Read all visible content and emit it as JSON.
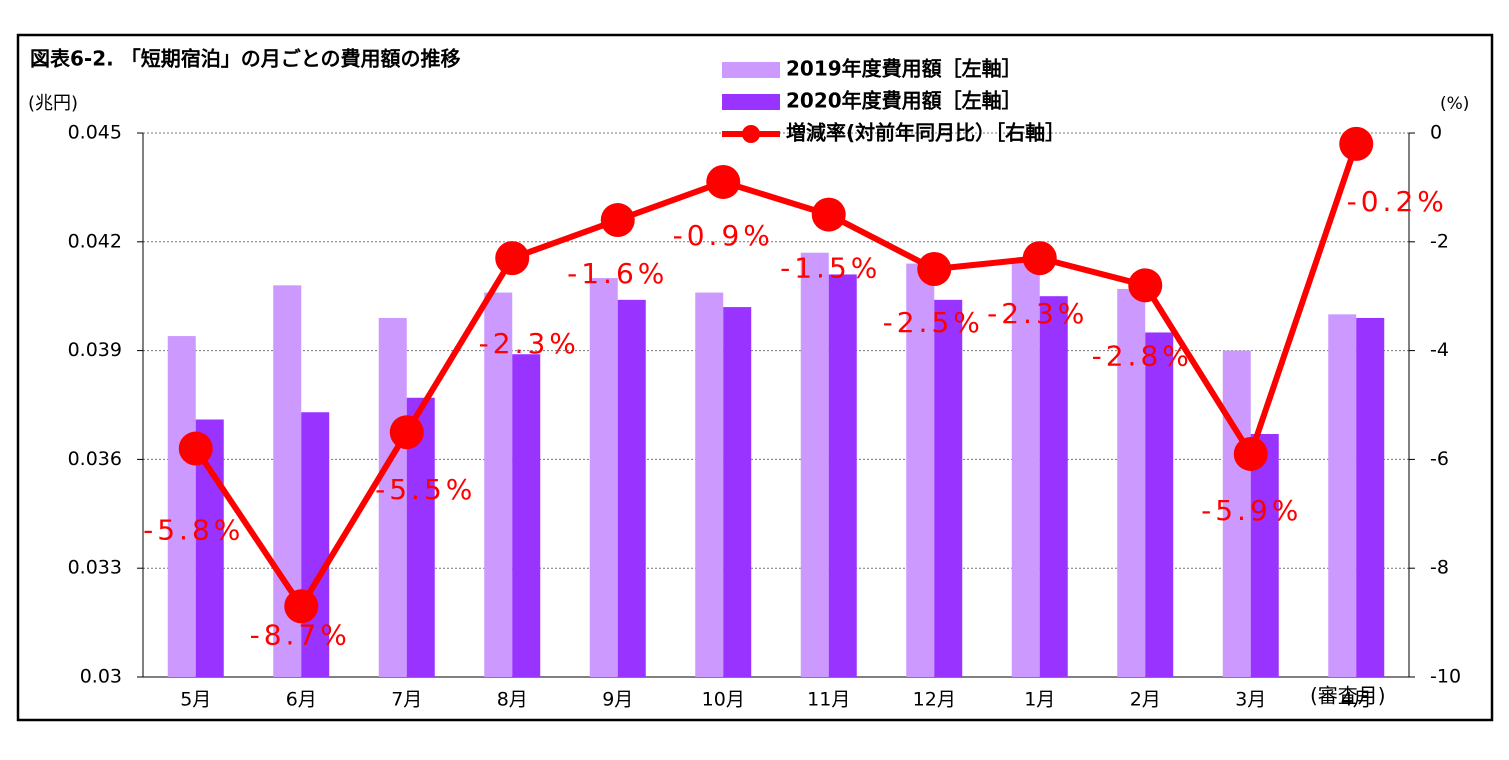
{
  "chart_data": {
    "type": "bar-line",
    "title": "図表6-2. 「短期宿泊」の月ごとの費用額の推移",
    "ylabel": "(兆円)",
    "y2label": "(%)",
    "xlabel": "(審査月)",
    "categories": [
      "5月",
      "6月",
      "7月",
      "8月",
      "9月",
      "10月",
      "11月",
      "12月",
      "1月",
      "2月",
      "3月",
      "4月"
    ],
    "series": [
      {
        "name": "2019年度費用額［左軸］",
        "type": "bar",
        "color": "#cc99ff",
        "values": [
          0.0394,
          0.0408,
          0.0399,
          0.0406,
          0.041,
          0.0406,
          0.0417,
          0.0414,
          0.0415,
          0.0407,
          0.039,
          0.04
        ]
      },
      {
        "name": "2020年度費用額［左軸］",
        "type": "bar",
        "color": "#9933ff",
        "values": [
          0.0371,
          0.0373,
          0.0377,
          0.0389,
          0.0404,
          0.0402,
          0.0411,
          0.0404,
          0.0405,
          0.0395,
          0.0367,
          0.0399
        ]
      },
      {
        "name": "増減率(対前年同月比）［右軸］",
        "type": "line",
        "axis": "y2",
        "color": "#ff0000",
        "values": [
          -5.8,
          -8.7,
          -5.5,
          -2.3,
          -1.6,
          -0.9,
          -1.5,
          -2.5,
          -2.3,
          -2.8,
          -5.9,
          -0.2
        ],
        "value_labels": [
          "-5.8%",
          "-8.7%",
          "-5.5%",
          "-2.3%",
          "-1.6%",
          "-0.9%",
          "-1.5%",
          "-2.5%",
          "-2.3%",
          "-2.8%",
          "-5.9%",
          "-0.2%"
        ]
      }
    ],
    "ylim": [
      0.03,
      0.045
    ],
    "yticks": [
      0.03,
      0.033,
      0.036,
      0.039,
      0.042,
      0.045
    ],
    "y2lim": [
      -10,
      0
    ],
    "y2ticks": [
      -10,
      -8,
      -6,
      -4,
      -2,
      0
    ],
    "grid": true
  }
}
